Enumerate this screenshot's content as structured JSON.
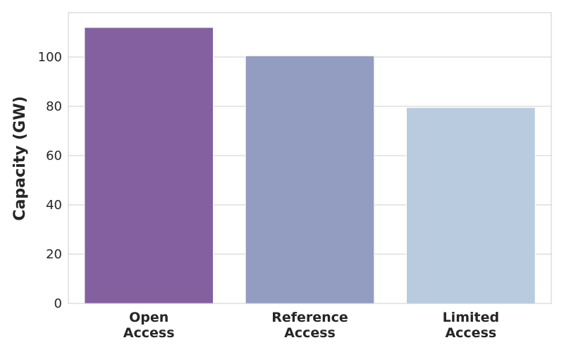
{
  "chart_data": {
    "type": "bar",
    "categories": [
      [
        "Open",
        "Access"
      ],
      [
        "Reference",
        "Access"
      ],
      [
        "Limited",
        "Access"
      ]
    ],
    "values": [
      112,
      100.5,
      79.5
    ],
    "colors": [
      "#8560a0",
      "#939cc1",
      "#b8cbdf"
    ],
    "ylabel": "Capacity (GW)",
    "xlabel": "",
    "ylim": [
      0,
      118
    ],
    "yticks": [
      "0",
      "20",
      "40",
      "60",
      "80",
      "100"
    ],
    "grid": true
  }
}
